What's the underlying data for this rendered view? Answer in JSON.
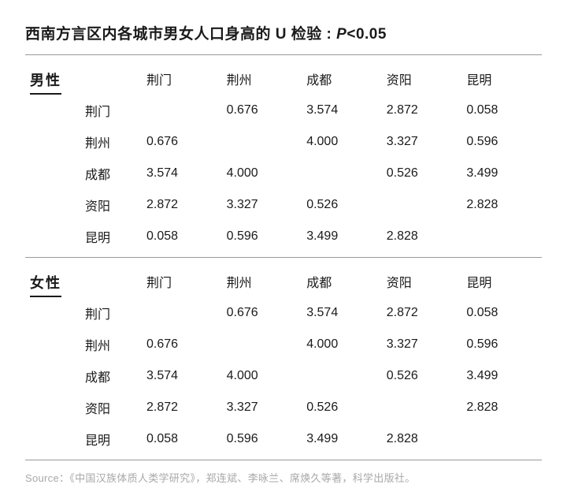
{
  "title": {
    "main": "西南方言区内各城市男女人口身高的 U 检验 : ",
    "stat_letter": "P",
    "stat_rest": "<0.05"
  },
  "columns": [
    "荆门",
    "荆州",
    "成都",
    "资阳",
    "昆明"
  ],
  "groups": [
    {
      "label": "男性",
      "rows": [
        {
          "label": "荆门",
          "cells": [
            "",
            "0.676",
            "3.574",
            "2.872",
            "0.058"
          ]
        },
        {
          "label": "荆州",
          "cells": [
            "0.676",
            "",
            "4.000",
            "3.327",
            "0.596"
          ]
        },
        {
          "label": "成都",
          "cells": [
            "3.574",
            "4.000",
            "",
            "0.526",
            "3.499"
          ]
        },
        {
          "label": "资阳",
          "cells": [
            "2.872",
            "3.327",
            "0.526",
            "",
            "2.828"
          ]
        },
        {
          "label": "昆明",
          "cells": [
            "0.058",
            "0.596",
            "3.499",
            "2.828",
            ""
          ]
        }
      ]
    },
    {
      "label": "女性",
      "rows": [
        {
          "label": "荆门",
          "cells": [
            "",
            "0.676",
            "3.574",
            "2.872",
            "0.058"
          ]
        },
        {
          "label": "荆州",
          "cells": [
            "0.676",
            "",
            "4.000",
            "3.327",
            "0.596"
          ]
        },
        {
          "label": "成都",
          "cells": [
            "3.574",
            "4.000",
            "",
            "0.526",
            "3.499"
          ]
        },
        {
          "label": "资阳",
          "cells": [
            "2.872",
            "3.327",
            "0.526",
            "",
            "2.828"
          ]
        },
        {
          "label": "昆明",
          "cells": [
            "0.058",
            "0.596",
            "3.499",
            "2.828",
            ""
          ]
        }
      ]
    }
  ],
  "source": "Source：《中国汉族体质人类学研究》，郑连斌、李咏兰、席焕久等著，科学出版社。",
  "style": {
    "type": "table",
    "background_color": "#ffffff",
    "text_color": "#1a1a1a",
    "muted_text_color": "#a8a8a8",
    "rule_color": "#999999",
    "group_underline_color": "#1a1a1a",
    "title_fontsize_pt": 14,
    "body_fontsize_pt": 12,
    "source_fontsize_pt": 10,
    "column_count": 5,
    "decimal_places": 3,
    "cell_align": "left"
  }
}
